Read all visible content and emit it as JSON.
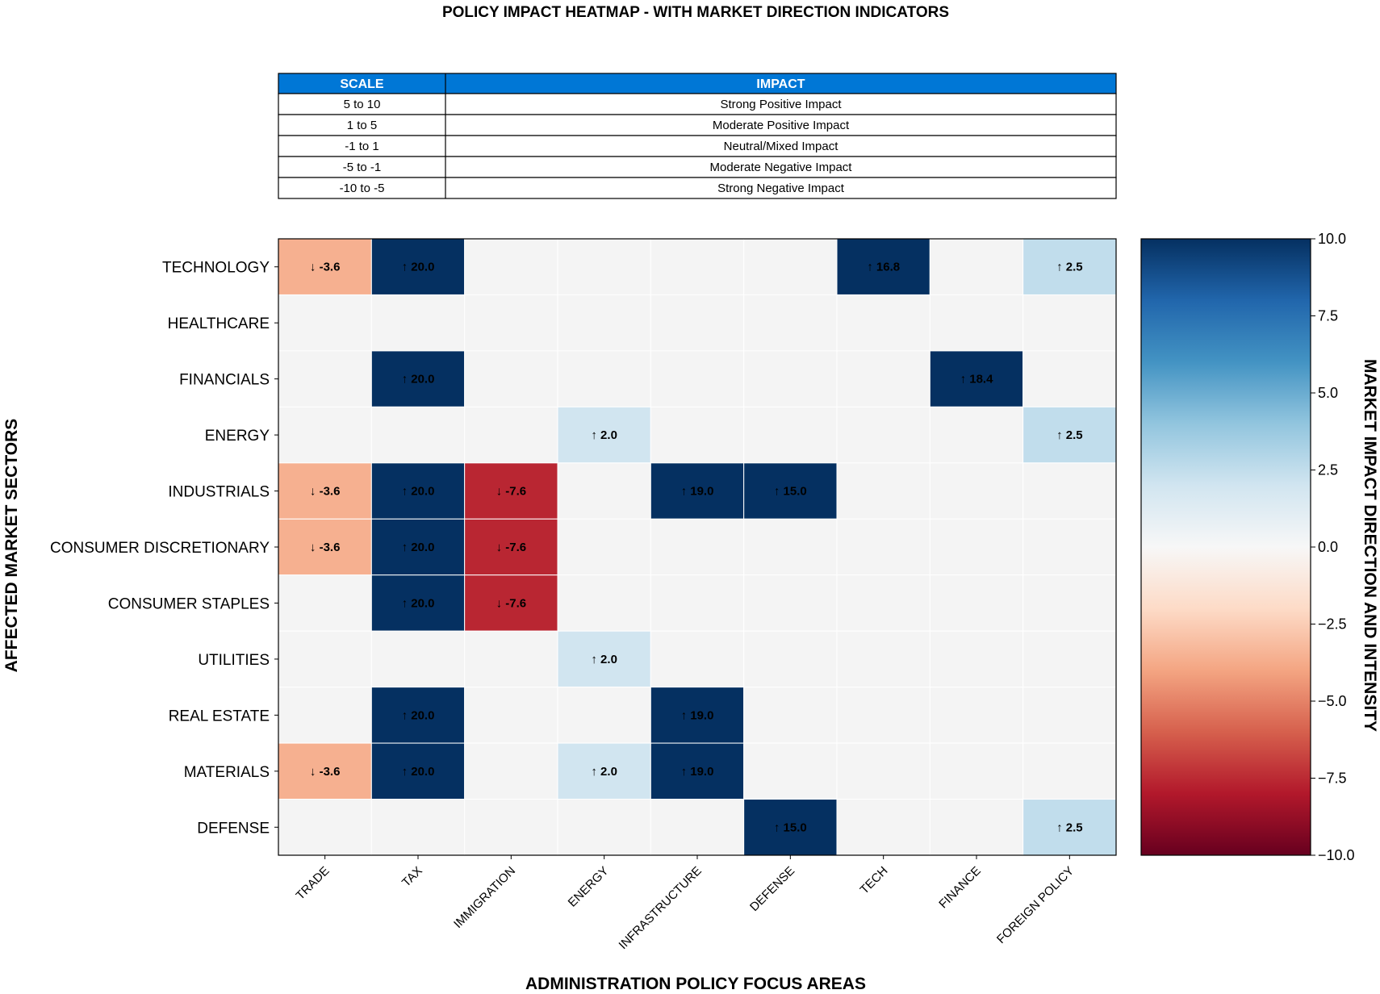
{
  "chart_data": {
    "type": "heatmap",
    "title": "POLICY IMPACT HEATMAP - WITH MARKET DIRECTION INDICATORS",
    "xlabel": "ADMINISTRATION POLICY FOCUS AREAS",
    "ylabel": "AFFECTED MARKET SECTORS",
    "x_categories": [
      "TRADE",
      "TAX",
      "IMMIGRATION",
      "ENERGY",
      "INFRASTRUCTURE",
      "DEFENSE",
      "TECH",
      "FINANCE",
      "FOREIGN POLICY"
    ],
    "y_categories": [
      "TECHNOLOGY",
      "HEALTHCARE",
      "FINANCIALS",
      "ENERGY",
      "INDUSTRIALS",
      "CONSUMER DISCRETIONARY",
      "CONSUMER STAPLES",
      "UTILITIES",
      "REAL ESTATE",
      "MATERIALS",
      "DEFENSE"
    ],
    "values": [
      [
        -3.6,
        20.0,
        0,
        0,
        0,
        0,
        16.8,
        0,
        2.5
      ],
      [
        0,
        0,
        0,
        0,
        0,
        0,
        0,
        0,
        0
      ],
      [
        0,
        20.0,
        0,
        0,
        0,
        0,
        0,
        18.4,
        0
      ],
      [
        0,
        0,
        0,
        2.0,
        0,
        0,
        0,
        0,
        2.5
      ],
      [
        -3.6,
        20.0,
        -7.6,
        0,
        19.0,
        15.0,
        0,
        0,
        0
      ],
      [
        -3.6,
        20.0,
        -7.6,
        0,
        0,
        0,
        0,
        0,
        0
      ],
      [
        0,
        20.0,
        -7.6,
        0,
        0,
        0,
        0,
        0,
        0
      ],
      [
        0,
        0,
        0,
        2.0,
        0,
        0,
        0,
        0,
        0
      ],
      [
        0,
        20.0,
        0,
        0,
        19.0,
        0,
        0,
        0,
        0
      ],
      [
        -3.6,
        20.0,
        0,
        2.0,
        19.0,
        0,
        0,
        0,
        0
      ],
      [
        0,
        0,
        0,
        0,
        0,
        15.0,
        0,
        0,
        2.5
      ]
    ],
    "colorbar": {
      "label": "MARKET IMPACT DIRECTION AND INTENSITY",
      "range": [
        -10,
        10
      ],
      "ticks": [
        10,
        7.5,
        5,
        2.5,
        0,
        -2.5,
        -5,
        -7.5,
        -10
      ],
      "tick_labels": [
        "10.0",
        "7.5",
        "5.0",
        "2.5",
        "0.0",
        "−2.5",
        "−5.0",
        "−7.5",
        "−10.0"
      ],
      "colormap": "RdBu",
      "stops": [
        "#67001f",
        "#b2182b",
        "#d6604d",
        "#f4a582",
        "#fddbc7",
        "#f7f7f7",
        "#d1e5f0",
        "#92c5de",
        "#4393c3",
        "#2166ac",
        "#053061"
      ]
    },
    "cell_label_format": "arrow + value",
    "up_arrow": "↑",
    "down_arrow": "↓",
    "zero_cell_color": "#f4f4f4"
  },
  "legend_table": {
    "header_color": "#0077d6",
    "headers": [
      "SCALE",
      "IMPACT"
    ],
    "rows": [
      [
        "5 to 10",
        "Strong Positive Impact"
      ],
      [
        "1 to 5",
        "Moderate Positive Impact"
      ],
      [
        "-1 to 1",
        "Neutral/Mixed Impact"
      ],
      [
        "-5 to -1",
        "Moderate Negative Impact"
      ],
      [
        "-10 to -5",
        "Strong Negative Impact"
      ]
    ]
  }
}
